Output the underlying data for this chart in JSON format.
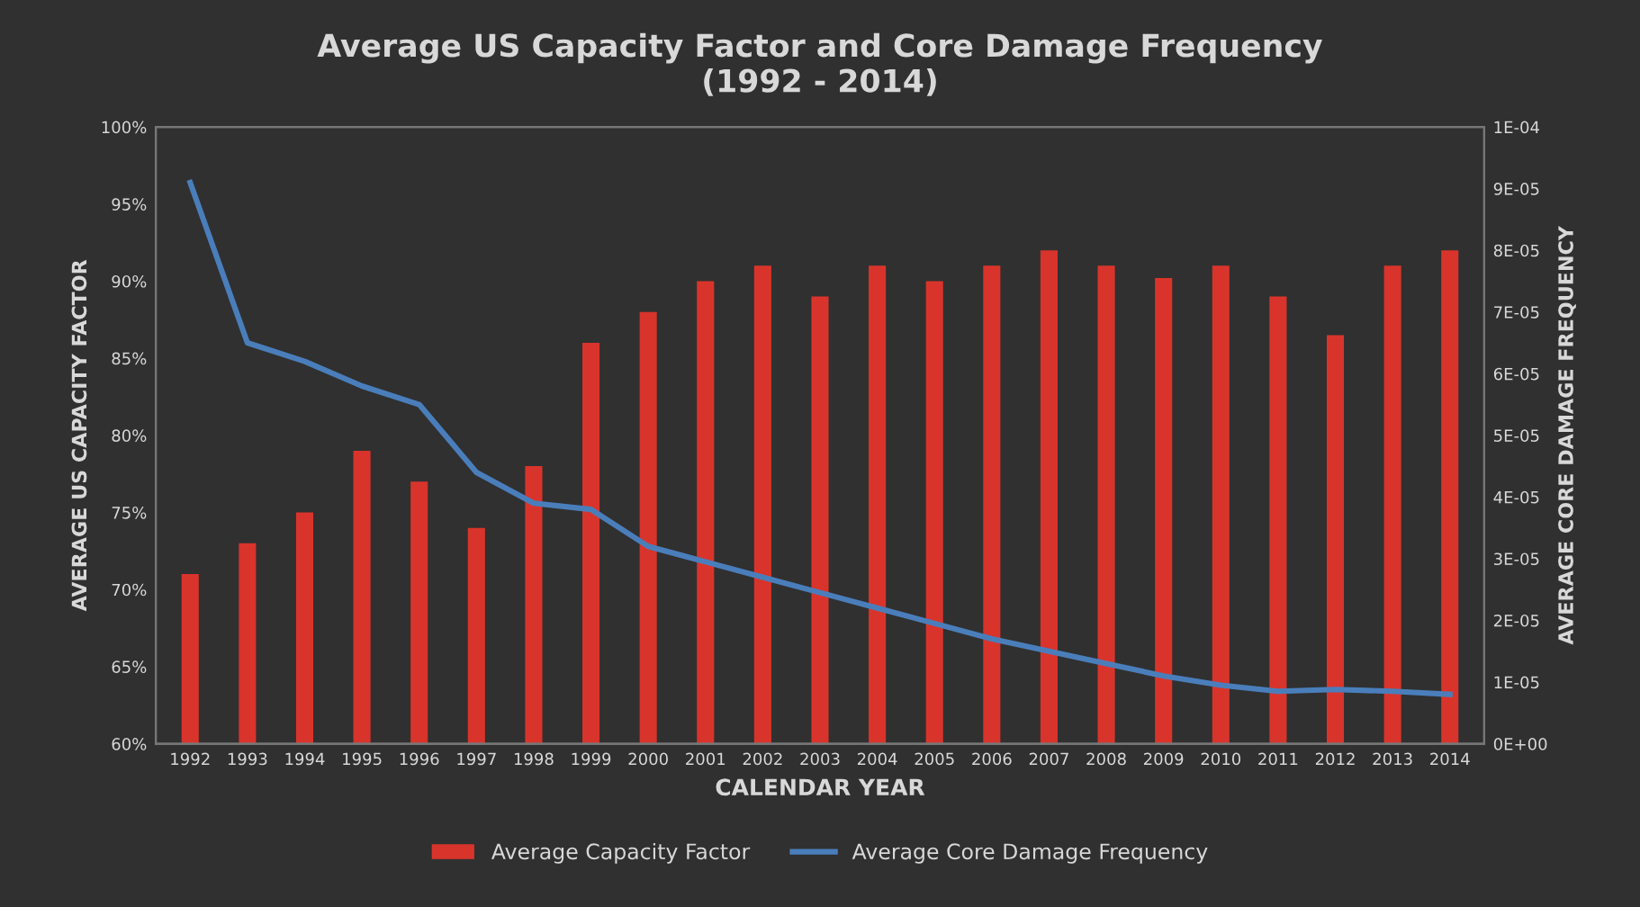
{
  "chart_data": {
    "type": "bar",
    "title": "Average US Capacity Factor and Core Damage Frequency\n(1992 - 2014)",
    "xlabel": "CALENDAR YEAR",
    "ylabel": "AVERAGE US CAPACITY FACTOR",
    "y2label": "AVERAGE CORE DAMAGE FREQUENCY",
    "categories": [
      "1992",
      "1993",
      "1994",
      "1995",
      "1996",
      "1997",
      "1998",
      "1999",
      "2000",
      "2001",
      "2002",
      "2003",
      "2004",
      "2005",
      "2006",
      "2007",
      "2008",
      "2009",
      "2010",
      "2011",
      "2012",
      "2013",
      "2014"
    ],
    "series": [
      {
        "name": "Average Capacity Factor",
        "color": "#d9342b",
        "values": [
          71,
          73,
          75,
          79,
          77,
          74,
          78,
          86,
          88,
          90,
          91,
          89,
          91,
          90,
          91,
          92,
          91,
          90.2,
          91,
          89,
          86.5,
          91,
          92
        ]
      },
      {
        "name": "Average Core Damage Frequency",
        "type": "line",
        "axis": "y2",
        "color": "#4a7ebb",
        "values": [
          9.1e-05,
          6.5e-05,
          6.2e-05,
          5.8e-05,
          5.5e-05,
          4.4e-05,
          3.9e-05,
          3.8e-05,
          3.2e-05,
          2.95e-05,
          2.7e-05,
          2.45e-05,
          2.2e-05,
          1.95e-05,
          1.7e-05,
          1.5e-05,
          1.3e-05,
          1.1e-05,
          9.5e-06,
          8.5e-06,
          8.8e-06,
          8.5e-06,
          8e-06
        ]
      }
    ],
    "ylim": [
      60,
      100
    ],
    "yticks": [
      {
        "value": 60,
        "label": "60%"
      },
      {
        "value": 65,
        "label": "65%"
      },
      {
        "value": 70,
        "label": "70%"
      },
      {
        "value": 75,
        "label": "75%"
      },
      {
        "value": 80,
        "label": "80%"
      },
      {
        "value": 85,
        "label": "85%"
      },
      {
        "value": 90,
        "label": "90%"
      },
      {
        "value": 95,
        "label": "95%"
      },
      {
        "value": 100,
        "label": "100%"
      }
    ],
    "y2lim": [
      0,
      0.0001
    ],
    "y2ticks": [
      {
        "value": 0,
        "label": "0E+00"
      },
      {
        "value": 1e-05,
        "label": "1E-05"
      },
      {
        "value": 2e-05,
        "label": "2E-05"
      },
      {
        "value": 3e-05,
        "label": "3E-05"
      },
      {
        "value": 4e-05,
        "label": "4E-05"
      },
      {
        "value": 5e-05,
        "label": "5E-05"
      },
      {
        "value": 6e-05,
        "label": "6E-05"
      },
      {
        "value": 7e-05,
        "label": "7E-05"
      },
      {
        "value": 8e-05,
        "label": "8E-05"
      },
      {
        "value": 9e-05,
        "label": "9E-05"
      },
      {
        "value": 0.0001,
        "label": "1E-04"
      }
    ],
    "grid": false,
    "legend": "bottom"
  }
}
